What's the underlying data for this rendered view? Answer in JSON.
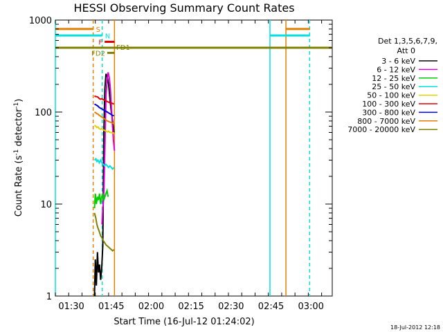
{
  "chart_data": {
    "type": "line",
    "title": "HESSI Observing Summary Count Rates",
    "xlabel": "Start Time (16-Jul-12 01:24:02)",
    "ylabel_main": "Count Rate (s",
    "ylabel_sup1": "-1",
    "ylabel_mid": " detector",
    "ylabel_sup2": "-1",
    "ylabel_end": ")",
    "x_range_min": [
      84,
      188
    ],
    "y_range": [
      1,
      1000
    ],
    "y_scale": "log",
    "x_ticks": [
      {
        "label": "01:30",
        "min": 90
      },
      {
        "label": "01:45",
        "min": 105
      },
      {
        "label": "02:00",
        "min": 120
      },
      {
        "label": "02:15",
        "min": 135
      },
      {
        "label": "02:30",
        "min": 150
      },
      {
        "label": "02:45",
        "min": 165
      },
      {
        "label": "03:00",
        "min": 180
      }
    ],
    "y_ticks": [
      {
        "label": "1",
        "value": 1
      },
      {
        "label": "10",
        "value": 10
      },
      {
        "label": "100",
        "value": 100
      },
      {
        "label": "1000",
        "value": 1000
      }
    ],
    "legend_header1": "Det 1,3,5,6,7,9,",
    "legend_header2": "Att 0",
    "series": [
      {
        "name": "3 - 6 keV",
        "color": "#000000",
        "points": [
          [
            98.7,
            1
          ],
          [
            99,
            2.5
          ],
          [
            99.4,
            1.3
          ],
          [
            99.8,
            3
          ],
          [
            100.2,
            1.8
          ],
          [
            100.6,
            2.2
          ],
          [
            101,
            1.5
          ],
          [
            101.4,
            2
          ],
          [
            101.8,
            3.5
          ],
          [
            102.2,
            60
          ],
          [
            102.6,
            180
          ],
          [
            103,
            260
          ],
          [
            103.5,
            240
          ],
          [
            104,
            200
          ],
          [
            104.5,
            140
          ],
          [
            105,
            100
          ],
          [
            105.5,
            80
          ],
          [
            106,
            60
          ]
        ]
      },
      {
        "name": "6 - 12 keV",
        "color": "#e000e0",
        "points": [
          [
            101.5,
            6
          ],
          [
            101.8,
            9
          ],
          [
            102.2,
            12
          ],
          [
            102.6,
            40
          ],
          [
            103,
            150
          ],
          [
            103.4,
            220
          ],
          [
            103.8,
            270
          ],
          [
            104.2,
            240
          ],
          [
            104.6,
            190
          ],
          [
            105,
            120
          ],
          [
            105.4,
            75
          ],
          [
            105.8,
            50
          ],
          [
            106.2,
            38
          ]
        ]
      },
      {
        "name": "12 - 25 keV",
        "color": "#00d000",
        "points": [
          [
            98.7,
            9
          ],
          [
            99,
            13
          ],
          [
            99.4,
            10
          ],
          [
            99.8,
            12
          ],
          [
            100.2,
            11
          ],
          [
            100.6,
            13
          ],
          [
            101,
            10
          ],
          [
            101.4,
            12
          ],
          [
            101.8,
            13
          ],
          [
            102.2,
            11
          ],
          [
            102.6,
            12
          ],
          [
            103,
            13
          ],
          [
            103.4,
            14
          ],
          [
            103.8,
            12
          ]
        ]
      },
      {
        "name": "25 - 50 keV",
        "color": "#00e0e0",
        "points": [
          [
            98.7,
            30
          ],
          [
            99.2,
            31
          ],
          [
            99.6,
            29
          ],
          [
            100,
            30
          ],
          [
            100.5,
            28
          ],
          [
            101,
            30
          ],
          [
            101.5,
            28
          ],
          [
            102,
            27
          ],
          [
            102.5,
            26
          ],
          [
            103,
            27
          ],
          [
            103.5,
            26
          ],
          [
            104,
            25
          ],
          [
            104.5,
            26
          ],
          [
            105,
            25
          ],
          [
            105.5,
            24
          ],
          [
            106,
            25
          ]
        ]
      },
      {
        "name": "50 - 100 keV",
        "color": "#e0d000",
        "points": [
          [
            98.7,
            72
          ],
          [
            99.2,
            70
          ],
          [
            99.6,
            68
          ],
          [
            100,
            69
          ],
          [
            100.5,
            66
          ],
          [
            101,
            65
          ],
          [
            101.5,
            66
          ],
          [
            102,
            64
          ],
          [
            102.5,
            63
          ],
          [
            103,
            62
          ],
          [
            103.5,
            61
          ],
          [
            104,
            62
          ],
          [
            104.5,
            60
          ],
          [
            105,
            60
          ],
          [
            105.5,
            59
          ],
          [
            106,
            60
          ]
        ]
      },
      {
        "name": "100 - 300 keV",
        "color": "#e00000",
        "points": [
          [
            98.7,
            150
          ],
          [
            99,
            148
          ],
          [
            99.5,
            147
          ],
          [
            100,
            145
          ],
          [
            100.5,
            140
          ],
          [
            101,
            138
          ],
          [
            101.5,
            140
          ],
          [
            102,
            136
          ],
          [
            102.5,
            135
          ],
          [
            103,
            132
          ],
          [
            103.5,
            130
          ],
          [
            104,
            128
          ],
          [
            104.5,
            126
          ],
          [
            105,
            125
          ],
          [
            105.5,
            124
          ],
          [
            106,
            122
          ]
        ]
      },
      {
        "name": "300 - 800 keV",
        "color": "#0000e0",
        "points": [
          [
            98.7,
            122
          ],
          [
            99.2,
            120
          ],
          [
            99.6,
            118
          ],
          [
            100,
            116
          ],
          [
            100.5,
            112
          ],
          [
            101,
            110
          ],
          [
            101.5,
            108
          ],
          [
            102,
            106
          ],
          [
            102.5,
            104
          ],
          [
            103,
            102
          ],
          [
            103.5,
            100
          ],
          [
            104,
            98
          ],
          [
            104.5,
            96
          ],
          [
            105,
            94
          ],
          [
            105.5,
            92
          ],
          [
            106,
            91
          ]
        ]
      },
      {
        "name": "800 - 7000 keV",
        "color": "#e08000",
        "points": [
          [
            98.7,
            100
          ],
          [
            99.2,
            98
          ],
          [
            99.6,
            96
          ],
          [
            100,
            95
          ],
          [
            100.5,
            92
          ],
          [
            101,
            90
          ],
          [
            101.5,
            88
          ],
          [
            102,
            86
          ],
          [
            102.5,
            84
          ],
          [
            103,
            82
          ],
          [
            103.5,
            80
          ],
          [
            104,
            79
          ],
          [
            104.5,
            78
          ],
          [
            105,
            77
          ],
          [
            105.5,
            76
          ],
          [
            106,
            75
          ]
        ]
      },
      {
        "name": "7000 - 20000 keV",
        "color": "#808000",
        "points": [
          [
            98.7,
            8
          ],
          [
            99.2,
            7
          ],
          [
            99.6,
            6
          ],
          [
            100,
            5.5
          ],
          [
            100.5,
            5
          ],
          [
            101,
            4.5
          ],
          [
            101.5,
            4.3
          ],
          [
            102,
            4
          ],
          [
            102.5,
            3.8
          ],
          [
            103,
            3.6
          ],
          [
            103.5,
            3.5
          ],
          [
            104,
            3.4
          ],
          [
            104.5,
            3.3
          ],
          [
            105,
            3.2
          ],
          [
            105.5,
            3.1
          ],
          [
            106,
            3.2
          ]
        ]
      }
    ],
    "vertical_lines": [
      {
        "x": 84,
        "color": "#00e0e0",
        "dash": "solid"
      },
      {
        "x": 98.2,
        "color": "#e08000",
        "dash": "dashed"
      },
      {
        "x": 101.6,
        "color": "#00e0e0",
        "dash": "dashed"
      },
      {
        "x": 106.2,
        "color": "#e08000",
        "dash": "solid"
      },
      {
        "x": 164.6,
        "color": "#00e0e0",
        "dash": "solid"
      },
      {
        "x": 170.6,
        "color": "#e08000",
        "dash": "solid"
      },
      {
        "x": 179.5,
        "color": "#00e0e0",
        "dash": "dashed"
      }
    ],
    "flag_bars": [
      {
        "label": "S",
        "color": "#e08000",
        "y": 800,
        "segments": [
          [
            84,
            98.2
          ],
          [
            170.6,
            179.6
          ]
        ]
      },
      {
        "label": "N",
        "color": "#00e0e0",
        "y": 680,
        "segments": [
          [
            84,
            101.6
          ],
          [
            164.6,
            179.6
          ]
        ]
      },
      {
        "label": "F",
        "color": "#e00000",
        "y": 580,
        "segments": [
          [
            102.5,
            106.2
          ]
        ]
      },
      {
        "label": "FD1",
        "color": "#808000",
        "y": 500,
        "segments": [
          [
            84,
            188
          ]
        ]
      },
      {
        "label": "FD2",
        "color": "#808000",
        "y": 440,
        "segments": [
          [
            103.5,
            106.2
          ]
        ]
      }
    ]
  },
  "footer": {
    "timestamp": "18-Jul-2012 12:18"
  }
}
